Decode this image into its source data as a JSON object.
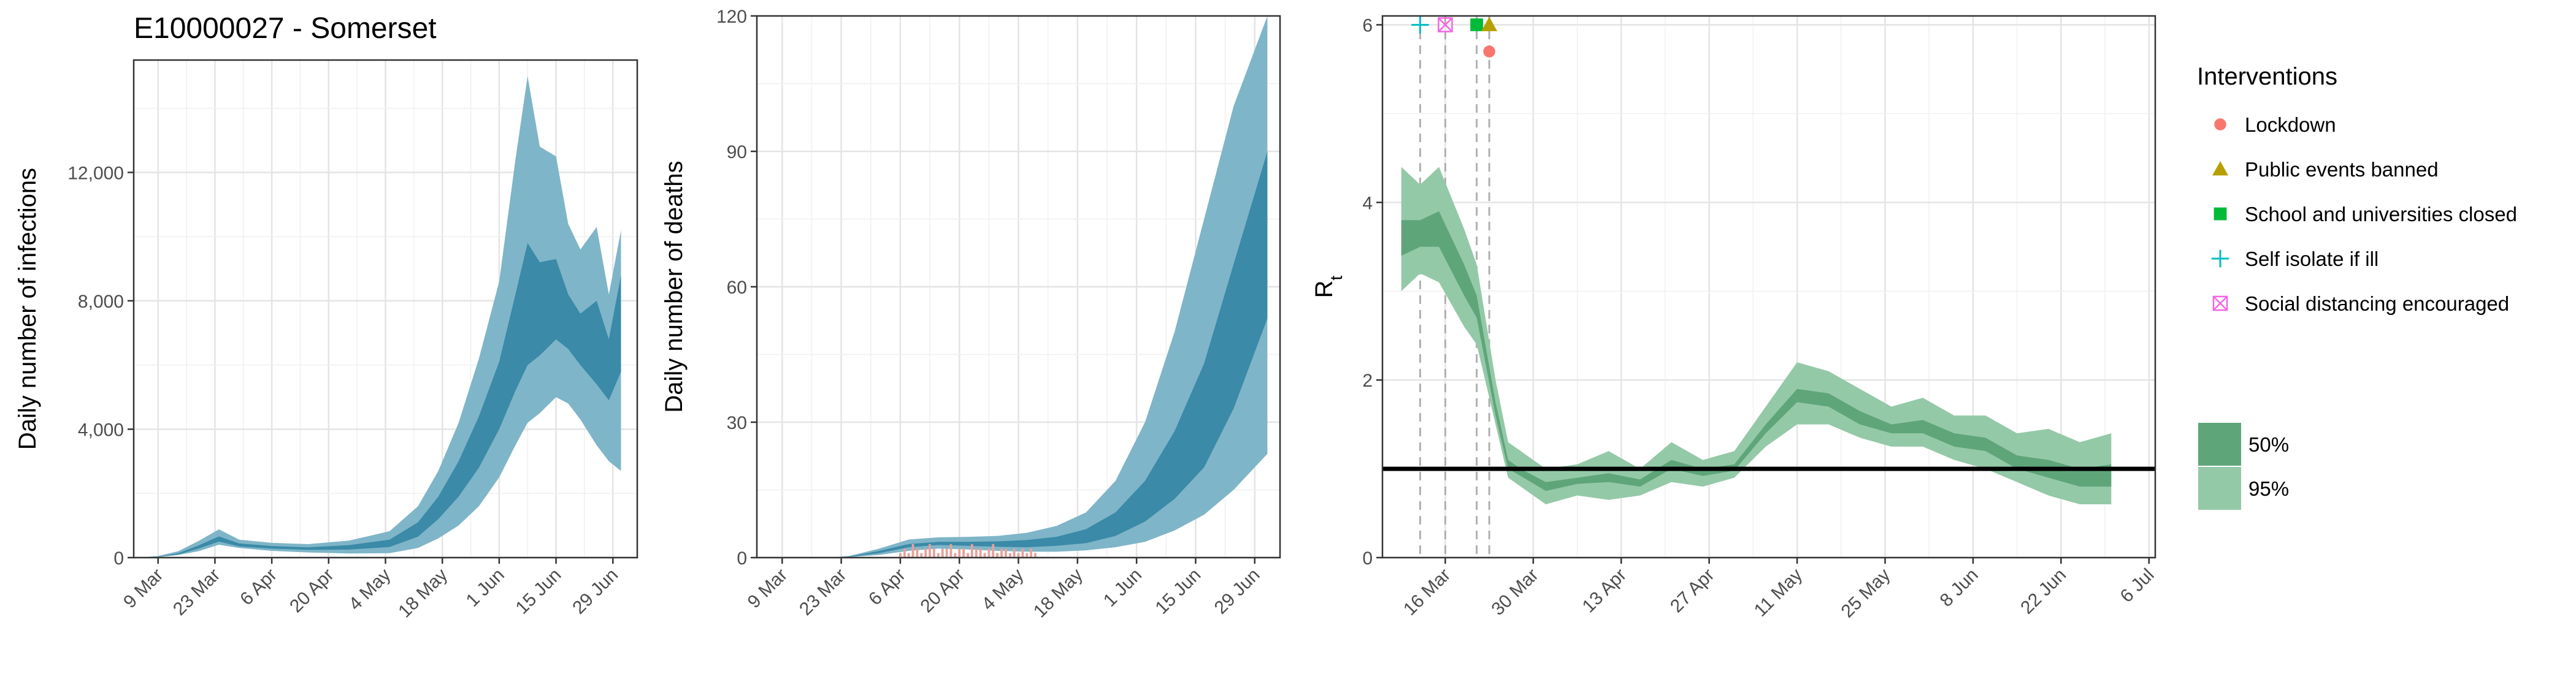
{
  "chart_data": [
    {
      "id": "infections",
      "type": "area",
      "title": "E10000027 - Somerset",
      "xlabel": "",
      "ylabel": "Daily number of infections",
      "y_ticks": [
        0,
        4000,
        8000,
        12000
      ],
      "y_tick_labels": [
        "0",
        "4,000",
        "8,000",
        "12,000"
      ],
      "ylim": [
        0,
        15500
      ],
      "x_tick_labels": [
        "9 Mar",
        "23 Mar",
        "6 Apr",
        "20 Apr",
        "4 May",
        "18 May",
        "1 Jun",
        "15 Jun",
        "29 Jun"
      ],
      "grid": true,
      "colors": {
        "ci95": "#7fb5c8",
        "ci50": "#3a8aa8"
      },
      "series": [
        {
          "band": "95",
          "x": [
            "2020-03-06",
            "2020-03-09",
            "2020-03-14",
            "2020-03-19",
            "2020-03-24",
            "2020-03-29",
            "2020-04-06",
            "2020-04-15",
            "2020-04-25",
            "2020-05-05",
            "2020-05-12",
            "2020-05-17",
            "2020-05-22",
            "2020-05-27",
            "2020-06-01",
            "2020-06-05",
            "2020-06-08",
            "2020-06-11",
            "2020-06-15",
            "2020-06-18",
            "2020-06-21",
            "2020-06-25",
            "2020-06-28",
            "2020-07-01"
          ],
          "upper": [
            20,
            50,
            200,
            520,
            880,
            560,
            460,
            420,
            530,
            820,
            1600,
            2700,
            4200,
            6200,
            8600,
            12400,
            15000,
            12800,
            12500,
            10400,
            9600,
            10300,
            8200,
            10200
          ],
          "lower": [
            5,
            15,
            80,
            200,
            400,
            300,
            210,
            160,
            130,
            140,
            300,
            600,
            1000,
            1600,
            2500,
            3500,
            4200,
            4500,
            5000,
            4800,
            4300,
            3500,
            3000,
            2700
          ]
        },
        {
          "band": "50",
          "x": [
            "2020-03-06",
            "2020-03-09",
            "2020-03-14",
            "2020-03-19",
            "2020-03-24",
            "2020-03-29",
            "2020-04-06",
            "2020-04-15",
            "2020-04-25",
            "2020-05-05",
            "2020-05-12",
            "2020-05-17",
            "2020-05-22",
            "2020-05-27",
            "2020-06-01",
            "2020-06-05",
            "2020-06-08",
            "2020-06-11",
            "2020-06-15",
            "2020-06-18",
            "2020-06-21",
            "2020-06-25",
            "2020-06-28",
            "2020-07-01"
          ],
          "upper": [
            12,
            30,
            140,
            380,
            660,
            440,
            360,
            320,
            390,
            560,
            1100,
            1900,
            3000,
            4400,
            6100,
            8200,
            9800,
            9200,
            9300,
            8200,
            7600,
            8000,
            6800,
            8800
          ],
          "lower": [
            8,
            22,
            100,
            280,
            500,
            350,
            280,
            240,
            250,
            330,
            650,
            1200,
            1900,
            2800,
            4000,
            5200,
            6000,
            6300,
            6800,
            6500,
            6000,
            5400,
            4900,
            5800
          ]
        }
      ]
    },
    {
      "id": "deaths",
      "type": "area",
      "title": "",
      "xlabel": "",
      "ylabel": "Daily number of deaths",
      "y_ticks": [
        0,
        30,
        60,
        90,
        120
      ],
      "y_tick_labels": [
        "0",
        "30",
        "60",
        "90",
        "120"
      ],
      "ylim": [
        0,
        120
      ],
      "x_tick_labels": [
        "9 Mar",
        "23 Mar",
        "6 Apr",
        "20 Apr",
        "4 May",
        "18 May",
        "1 Jun",
        "15 Jun",
        "29 Jun"
      ],
      "grid": true,
      "colors": {
        "ci95": "#7fb5c8",
        "ci50": "#3a8aa8",
        "observed": "#e8a09a"
      },
      "series": [
        {
          "band": "95",
          "x": [
            "2020-03-06",
            "2020-03-20",
            "2020-03-25",
            "2020-04-01",
            "2020-04-08",
            "2020-04-15",
            "2020-04-22",
            "2020-04-29",
            "2020-05-06",
            "2020-05-13",
            "2020-05-20",
            "2020-05-27",
            "2020-06-03",
            "2020-06-10",
            "2020-06-17",
            "2020-06-24",
            "2020-07-02"
          ],
          "upper": [
            0,
            0,
            0.4,
            2,
            4,
            4.5,
            4.6,
            4.8,
            5.5,
            7,
            10,
            17,
            30,
            50,
            75,
            100,
            120
          ],
          "lower": [
            0,
            0,
            0.1,
            0.6,
            1.5,
            2,
            1.8,
            1.5,
            1.3,
            1.3,
            1.6,
            2.3,
            3.5,
            6,
            9.5,
            15,
            23
          ]
        },
        {
          "band": "50",
          "x": [
            "2020-03-06",
            "2020-03-20",
            "2020-03-25",
            "2020-04-01",
            "2020-04-08",
            "2020-04-15",
            "2020-04-22",
            "2020-04-29",
            "2020-05-06",
            "2020-05-13",
            "2020-05-20",
            "2020-05-27",
            "2020-06-03",
            "2020-06-10",
            "2020-06-17",
            "2020-06-24",
            "2020-07-02"
          ],
          "upper": [
            0,
            0,
            0.25,
            1.5,
            3,
            3.5,
            3.5,
            3.6,
            3.9,
            4.6,
            6.3,
            10,
            17,
            28,
            43,
            65,
            90
          ],
          "lower": [
            0,
            0,
            0.15,
            1,
            2.3,
            2.8,
            2.6,
            2.4,
            2.3,
            2.6,
            3.2,
            4.8,
            8,
            13,
            20,
            33,
            53
          ]
        }
      ],
      "observed": {
        "x_start": "2020-04-06",
        "x_end": "2020-05-08",
        "values": [
          1,
          2,
          1,
          3,
          2,
          1,
          2,
          3,
          2,
          1,
          2,
          2,
          3,
          1,
          2,
          2,
          1,
          3,
          2,
          2,
          1,
          2,
          3,
          1,
          2,
          2,
          1,
          2,
          1,
          2,
          1,
          2,
          1
        ]
      }
    },
    {
      "id": "rt",
      "type": "area",
      "title": "",
      "xlabel": "",
      "ylabel": "R",
      "ylabel_subscript": "t",
      "y_ticks": [
        0,
        2,
        4,
        6
      ],
      "y_tick_labels": [
        "0",
        "2",
        "4",
        "6"
      ],
      "ylim": [
        0,
        6.1
      ],
      "x_tick_labels": [
        "16 Mar",
        "30 Mar",
        "13 Apr",
        "27 Apr",
        "11 May",
        "25 May",
        "8 Jun",
        "22 Jun",
        "6 Jul"
      ],
      "grid": true,
      "reference_line": 1,
      "colors": {
        "ci95": "#94c9a7",
        "ci50": "#5fa57a",
        "reference": "#000000"
      },
      "series": [
        {
          "band": "95",
          "x": [
            "2020-03-09",
            "2020-03-12",
            "2020-03-15",
            "2020-03-19",
            "2020-03-21",
            "2020-03-24",
            "2020-03-26",
            "2020-03-28",
            "2020-04-01",
            "2020-04-06",
            "2020-04-11",
            "2020-04-16",
            "2020-04-21",
            "2020-04-26",
            "2020-05-01",
            "2020-05-06",
            "2020-05-11",
            "2020-05-16",
            "2020-05-21",
            "2020-05-26",
            "2020-05-31",
            "2020-06-05",
            "2020-06-10",
            "2020-06-15",
            "2020-06-20",
            "2020-06-25",
            "2020-06-30"
          ],
          "upper": [
            4.4,
            4.2,
            4.4,
            3.7,
            3.3,
            2.0,
            1.3,
            1.2,
            1.0,
            1.05,
            1.2,
            1.0,
            1.3,
            1.1,
            1.2,
            1.7,
            2.2,
            2.1,
            1.9,
            1.7,
            1.8,
            1.6,
            1.6,
            1.4,
            1.45,
            1.3,
            1.4
          ],
          "upper_lower_pair": true,
          "lower": [
            3.0,
            3.2,
            3.1,
            2.6,
            2.4,
            1.5,
            0.9,
            0.8,
            0.6,
            0.7,
            0.65,
            0.7,
            0.85,
            0.8,
            0.9,
            1.25,
            1.5,
            1.5,
            1.35,
            1.25,
            1.25,
            1.1,
            1.0,
            0.85,
            0.7,
            0.6,
            0.6
          ]
        },
        {
          "band": "50",
          "x": [
            "2020-03-09",
            "2020-03-12",
            "2020-03-15",
            "2020-03-19",
            "2020-03-21",
            "2020-03-24",
            "2020-03-26",
            "2020-03-28",
            "2020-04-01",
            "2020-04-06",
            "2020-04-11",
            "2020-04-16",
            "2020-04-21",
            "2020-04-26",
            "2020-05-01",
            "2020-05-06",
            "2020-05-11",
            "2020-05-16",
            "2020-05-21",
            "2020-05-26",
            "2020-05-31",
            "2020-06-05",
            "2020-06-10",
            "2020-06-15",
            "2020-06-20",
            "2020-06-25",
            "2020-06-30"
          ],
          "upper": [
            3.8,
            3.8,
            3.9,
            3.3,
            2.95,
            1.75,
            1.1,
            1.0,
            0.85,
            0.9,
            0.95,
            0.88,
            1.1,
            1.0,
            1.05,
            1.5,
            1.9,
            1.85,
            1.65,
            1.5,
            1.55,
            1.4,
            1.35,
            1.15,
            1.1,
            1.0,
            1.05
          ],
          "lower": [
            3.4,
            3.5,
            3.5,
            2.95,
            2.7,
            1.6,
            1.0,
            0.92,
            0.75,
            0.83,
            0.85,
            0.8,
            1.0,
            0.92,
            0.98,
            1.4,
            1.75,
            1.7,
            1.5,
            1.4,
            1.4,
            1.25,
            1.2,
            1.0,
            0.9,
            0.8,
            0.8
          ]
        }
      ],
      "interventions": [
        {
          "label": "Self isolate if ill",
          "date": "2020-03-12",
          "y": 6.0,
          "shape": "plus",
          "color": "#00bfc4"
        },
        {
          "label": "Social distancing encouraged",
          "date": "2020-03-16",
          "y": 6.0,
          "shape": "boxx",
          "color": "#f564e3"
        },
        {
          "label": "School and universities closed",
          "date": "2020-03-21",
          "y": 6.0,
          "shape": "square",
          "color": "#00ba38"
        },
        {
          "label": "Public events banned",
          "date": "2020-03-23",
          "y": 6.0,
          "shape": "triangle",
          "color": "#b79f00"
        },
        {
          "label": "Lockdown",
          "date": "2020-03-23",
          "y": 5.7,
          "shape": "circle",
          "color": "#f8766d"
        }
      ]
    }
  ],
  "legend": {
    "title": "Interventions",
    "items": [
      {
        "label": "Lockdown",
        "shape": "circle",
        "color": "#f8766d"
      },
      {
        "label": "Public events banned",
        "shape": "triangle",
        "color": "#b79f00"
      },
      {
        "label": "School and universities closed",
        "shape": "square",
        "color": "#00ba38"
      },
      {
        "label": "Self isolate if ill",
        "shape": "plus",
        "color": "#00bfc4"
      },
      {
        "label": "Social distancing encouraged",
        "shape": "boxx",
        "color": "#f564e3"
      }
    ],
    "bands": [
      {
        "label": "50%",
        "color": "#5fa57a"
      },
      {
        "label": "95%",
        "color": "#94c9a7"
      }
    ]
  }
}
